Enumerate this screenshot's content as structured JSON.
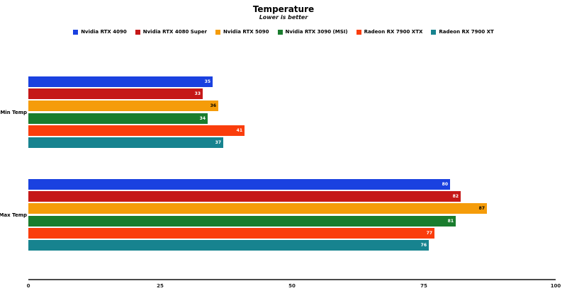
{
  "title": "Temperature",
  "subtitle": "Lower is better",
  "chart_data": {
    "type": "bar",
    "orientation": "horizontal",
    "title": "Temperature",
    "subtitle": "Lower is better",
    "categories": [
      "Min Temp",
      "Max Temp"
    ],
    "series": [
      {
        "name": "Nvidia RTX 4090",
        "color": "#1a41e0",
        "label_color": "#ffffff",
        "values": [
          35,
          80
        ]
      },
      {
        "name": "Nvidia RTX 4080 Super",
        "color": "#c51818",
        "label_color": "#ffffff",
        "values": [
          33,
          82
        ]
      },
      {
        "name": "Nvidia RTX 5090",
        "color": "#f59c0a",
        "label_color": "#000000",
        "values": [
          36,
          87
        ]
      },
      {
        "name": "Nvidia RTX 3090 (MSI)",
        "color": "#1a7d2e",
        "label_color": "#ffffff",
        "values": [
          34,
          81
        ]
      },
      {
        "name": "Radeon RX 7900 XTX",
        "color": "#fa3d0c",
        "label_color": "#ffffff",
        "values": [
          41,
          77
        ]
      },
      {
        "name": "Radeon RX 7900 XT",
        "color": "#17838f",
        "label_color": "#ffffff",
        "values": [
          37,
          76
        ]
      }
    ],
    "xlim": [
      0,
      100
    ],
    "x_ticks": [
      0,
      25,
      50,
      75,
      100
    ],
    "legend_position": "top",
    "grid": false
  }
}
